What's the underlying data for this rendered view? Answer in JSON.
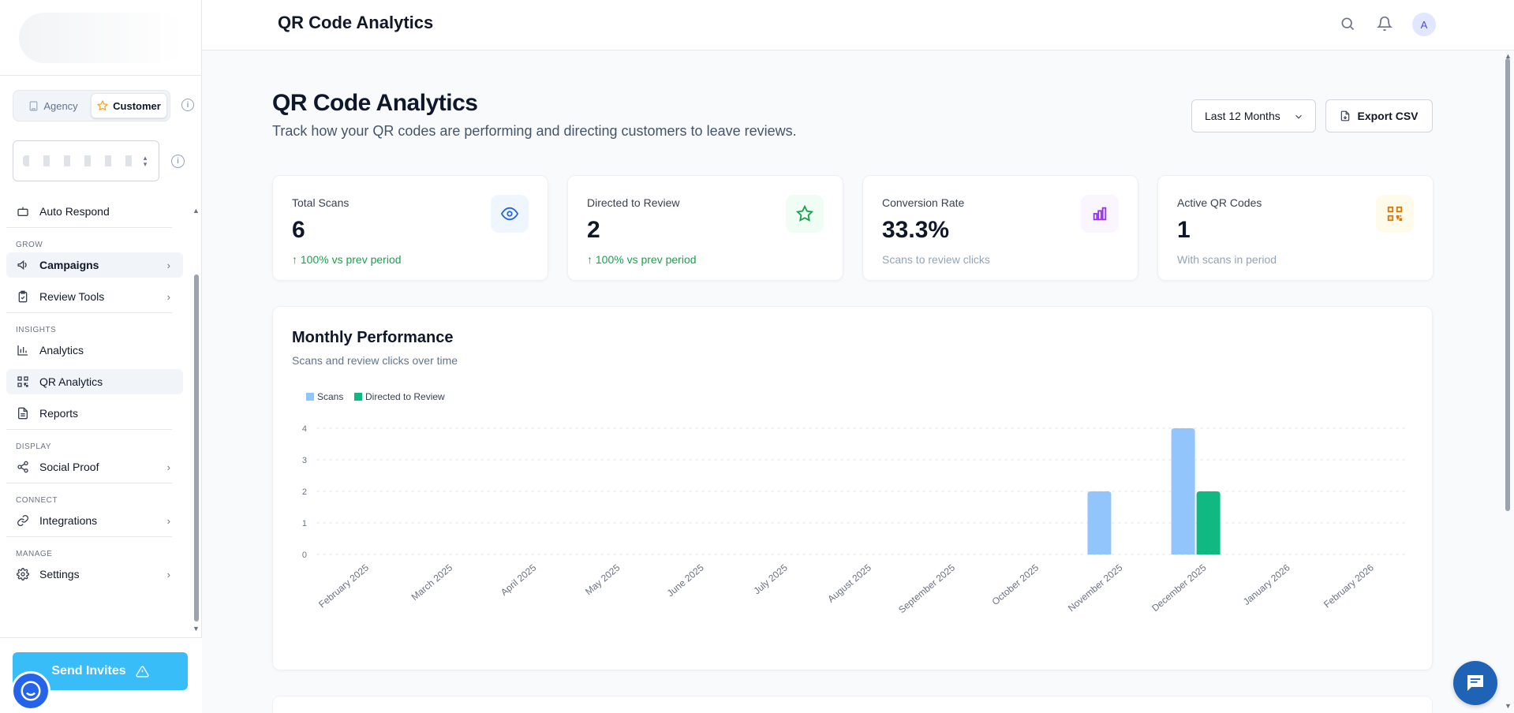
{
  "sidebar": {
    "mode_toggle": {
      "agency": "Agency",
      "customer": "Customer"
    },
    "items": {
      "auto_respond": "Auto Respond",
      "campaigns": "Campaigns",
      "review_tools": "Review Tools",
      "analytics": "Analytics",
      "qr_analytics": "QR Analytics",
      "reports": "Reports",
      "social_proof": "Social Proof",
      "integrations": "Integrations",
      "settings": "Settings"
    },
    "sections": {
      "grow": "GROW",
      "insights": "INSIGHTS",
      "display": "DISPLAY",
      "connect": "CONNECT",
      "manage": "MANAGE"
    },
    "send_invites": "Send Invites"
  },
  "header": {
    "title": "QR Code Analytics",
    "avatar_initial": "A"
  },
  "page": {
    "title": "QR Code Analytics",
    "subtitle": "Track how your QR codes are performing and directing customers to leave reviews.",
    "range_select": "Last 12 Months",
    "export_label": "Export CSV"
  },
  "stats": [
    {
      "label": "Total Scans",
      "value": "6",
      "note": "100% vs prev period",
      "trend": "up",
      "icon": "eye-icon",
      "accent": "#2563eb",
      "bg": "#eff6ff"
    },
    {
      "label": "Directed to Review",
      "value": "2",
      "note": "100% vs prev period",
      "trend": "up",
      "icon": "star-icon",
      "accent": "#16a34a",
      "bg": "#f0fdf4"
    },
    {
      "label": "Conversion Rate",
      "value": "33.3%",
      "note": "Scans to review clicks",
      "trend": "none",
      "icon": "bar-chart-icon",
      "accent": "#9333ea",
      "bg": "#faf5ff"
    },
    {
      "label": "Active QR Codes",
      "value": "1",
      "note": "With scans in period",
      "trend": "none",
      "icon": "qr-code-icon",
      "accent": "#d97706",
      "bg": "#fffbeb"
    }
  ],
  "chart": {
    "title": "Monthly Performance",
    "subtitle": "Scans and review clicks over time"
  },
  "chart_data": {
    "type": "bar",
    "categories": [
      "February 2025",
      "March 2025",
      "April 2025",
      "May 2025",
      "June 2025",
      "July 2025",
      "August 2025",
      "September 2025",
      "October 2025",
      "November 2025",
      "December 2025",
      "January 2026",
      "February 2026"
    ],
    "series": [
      {
        "name": "Scans",
        "color": "#93c5fd",
        "values": [
          0,
          0,
          0,
          0,
          0,
          0,
          0,
          0,
          0,
          2,
          4,
          0,
          0
        ]
      },
      {
        "name": "Directed to Review",
        "color": "#10b981",
        "values": [
          0,
          0,
          0,
          0,
          0,
          0,
          0,
          0,
          0,
          0,
          2,
          0,
          0
        ]
      }
    ],
    "yticks": [
      "0",
      "1",
      "2",
      "3",
      "4"
    ],
    "ylim": [
      0,
      4
    ],
    "grid": true,
    "legend": "top-left"
  }
}
